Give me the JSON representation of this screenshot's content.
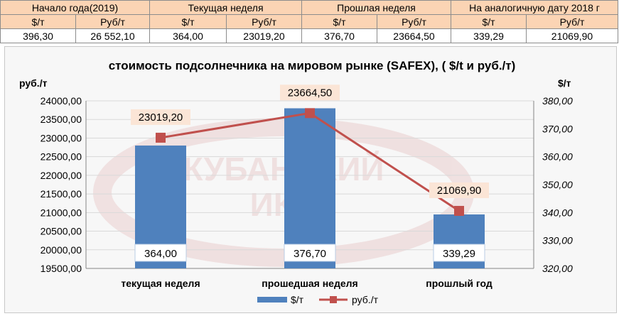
{
  "summary_table": {
    "groups": [
      "Начало года(2019)",
      "Текущая неделя",
      "Прошлая неделя",
      "На аналогичную дату 2018 г"
    ],
    "units": [
      "$/т",
      "Руб/т",
      "$/т",
      "Руб/т",
      "$/т",
      "Руб/т",
      "$/т",
      "Руб/т"
    ],
    "values": [
      "396,30",
      "26 552,10",
      "364,00",
      "23019,20",
      "376,70",
      "23664,50",
      "339,29",
      "21069,90"
    ]
  },
  "watermark": {
    "line1": "КУБАНСКИЙ",
    "line2": "ИКЦ"
  },
  "chart_data": {
    "type": "bar",
    "title": "стоимость подсолнечника на мировом рынке (SAFEX), ( $/t и руб./т)",
    "categories": [
      "текущая неделя",
      "прошедшая неделя",
      "прошлый год"
    ],
    "y_left_label": "руб./т",
    "y_right_label": "$/т",
    "y_left_range": [
      19500,
      24000
    ],
    "y_left_step": 500,
    "y_right_range": [
      320,
      380
    ],
    "y_right_step": 10,
    "y_left_ticks": [
      "19500,00",
      "20000,00",
      "20500,00",
      "21000,00",
      "21500,00",
      "22000,00",
      "22500,00",
      "23000,00",
      "23500,00",
      "24000,00"
    ],
    "y_right_ticks": [
      "320,00",
      "330,00",
      "340,00",
      "350,00",
      "360,00",
      "370,00",
      "380,00"
    ],
    "series": [
      {
        "name": "$/т",
        "kind": "bar",
        "axis": "left",
        "values": [
          22800,
          23800,
          20950
        ],
        "labels": [
          "364,00",
          "376,70",
          "339,29"
        ],
        "color": "#4f81bd"
      },
      {
        "name": "руб./т",
        "kind": "line",
        "axis": "right",
        "values": [
          366.8,
          375.6,
          340.6
        ],
        "labels": [
          "23019,20",
          "23664,50",
          "21069,90"
        ],
        "color": "#c0504d"
      }
    ],
    "legend_position": "bottom"
  }
}
